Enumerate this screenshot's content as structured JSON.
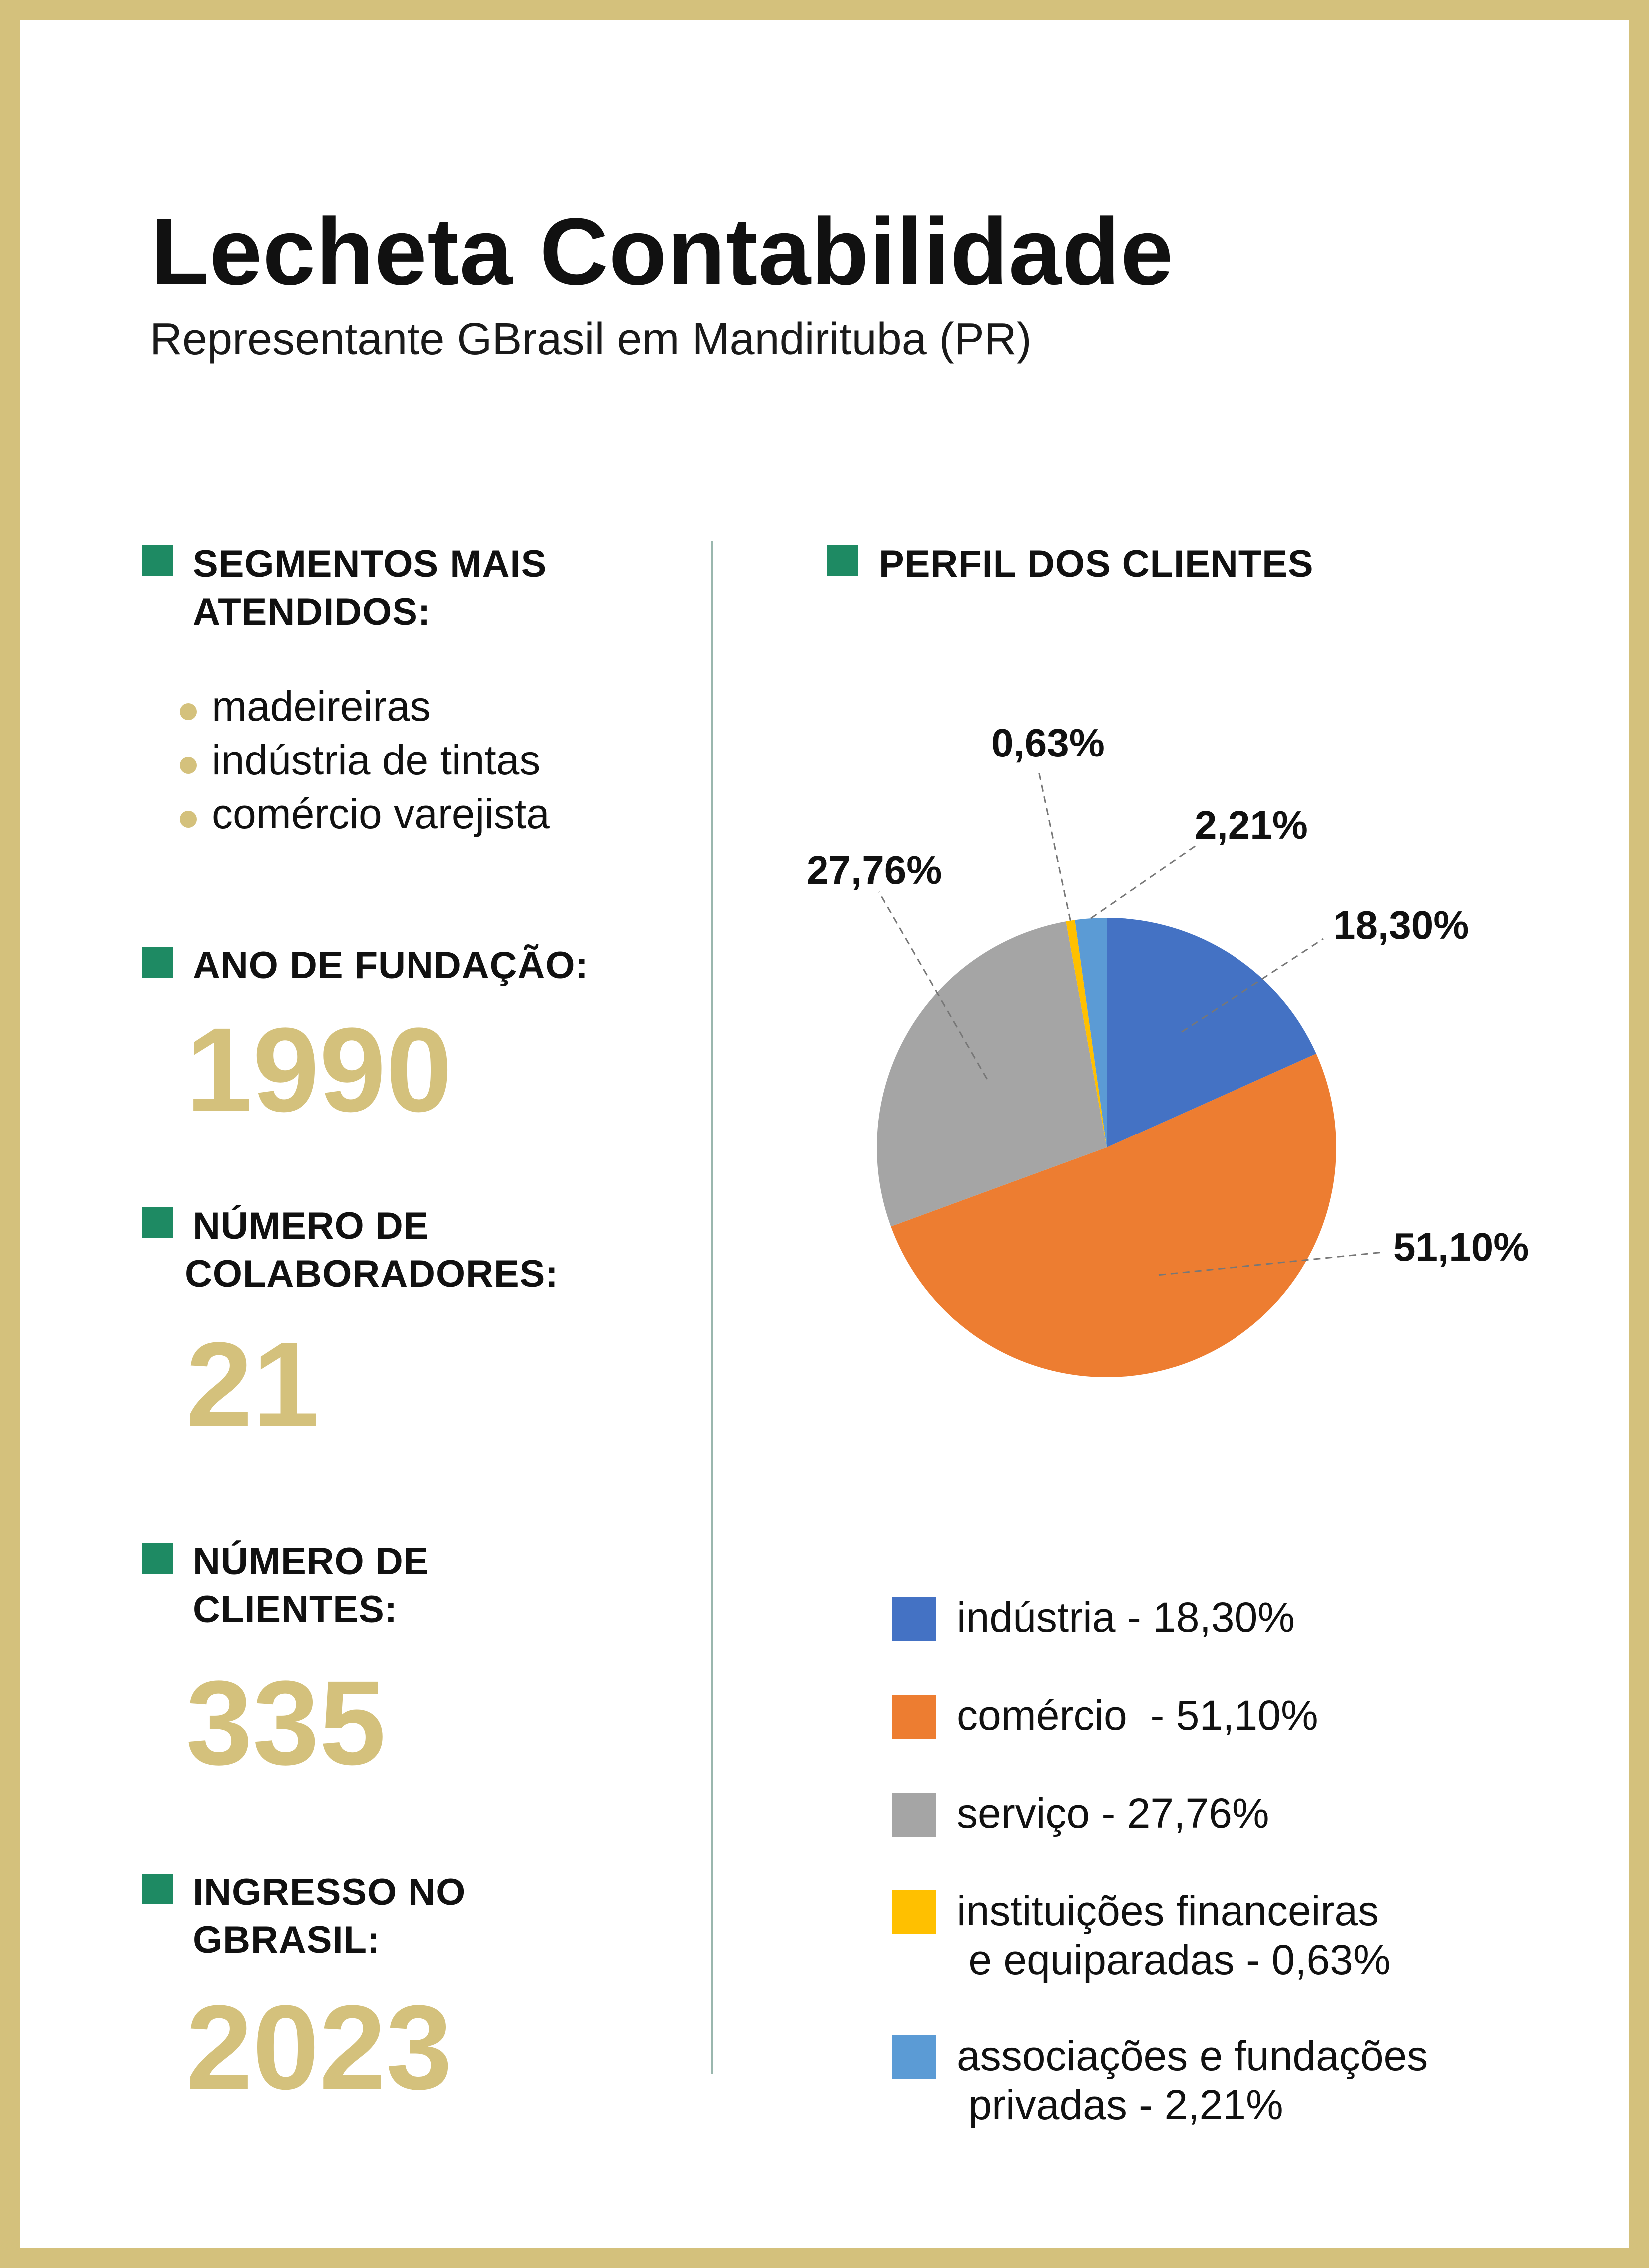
{
  "header": {
    "title": "Lecheta Contabilidade",
    "subtitle": "Representante GBrasil em Mandirituba (PR)"
  },
  "left": {
    "segments": {
      "heading": [
        "SEGMENTOS MAIS",
        "ATENDIDOS:"
      ],
      "items": [
        "madeireiras",
        "indústria de tintas",
        "comércio varejista"
      ]
    },
    "founding": {
      "heading": [
        "ANO DE FUNDAÇÃO:"
      ],
      "value": "1990"
    },
    "employees": {
      "heading": [
        "NÚMERO DE",
        "COLABORADORES:"
      ],
      "value": "21"
    },
    "clients": {
      "heading": [
        "NÚMERO DE",
        "CLIENTES:"
      ],
      "value": "335"
    },
    "joined": {
      "heading": [
        "INGRESSO NO",
        "GBRASIL:"
      ],
      "value": "2023"
    }
  },
  "colors": {
    "accent_gold": "#d4c17c",
    "marker_green": "#1e8a63",
    "divider": "#9ab7ae"
  },
  "chart_data": {
    "type": "pie",
    "title": "PERFIL DOS CLIENTES",
    "slices": [
      {
        "label": "indústria",
        "value": 18.3,
        "display": "18,30%",
        "color": "#4472c4",
        "legend": [
          "indústria - 18,30%"
        ]
      },
      {
        "label": "comércio",
        "value": 51.1,
        "display": "51,10%",
        "color": "#ed7d31",
        "legend": [
          "comércio  - 51,10%"
        ]
      },
      {
        "label": "serviço",
        "value": 27.76,
        "display": "27,76%",
        "color": "#a5a5a5",
        "legend": [
          "serviço - 27,76%"
        ]
      },
      {
        "label": "instituições financeiras e equiparadas",
        "value": 0.63,
        "display": "0,63%",
        "color": "#ffc000",
        "legend": [
          "instituições financeiras",
          " e equiparadas - 0,63%"
        ]
      },
      {
        "label": "associações e fundações privadas",
        "value": 2.21,
        "display": "2,21%",
        "color": "#5b9bd5",
        "legend": [
          "associações e fundações",
          " privadas - 2,21%"
        ]
      }
    ]
  }
}
